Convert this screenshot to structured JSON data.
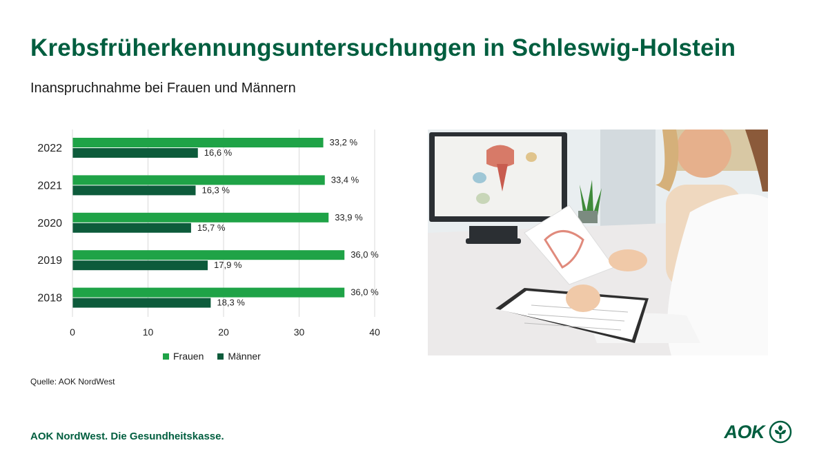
{
  "header": {
    "title": "Krebsfrüherkennungsuntersuchungen in Schleswig-Holstein",
    "subtitle": "Inanspruchnahme bei Frauen und Männern"
  },
  "chart_data": {
    "type": "bar",
    "orientation": "horizontal",
    "categories": [
      "2022",
      "2021",
      "2020",
      "2019",
      "2018"
    ],
    "series": [
      {
        "name": "Frauen",
        "values": [
          33.2,
          33.4,
          33.9,
          36.0,
          36.0
        ],
        "labels": [
          "33,2 %",
          "33,4 %",
          "33,9 %",
          "36,0 %",
          "36,0 %"
        ],
        "color": "#1fa347"
      },
      {
        "name": "Männer",
        "values": [
          16.6,
          16.3,
          15.7,
          17.9,
          18.3
        ],
        "labels": [
          "16,6 %",
          "16,3 %",
          "15,7 %",
          "17,9 %",
          "18,3 %"
        ],
        "color": "#0d5b3b"
      }
    ],
    "xlim": [
      0,
      40
    ],
    "xticks": [
      "0",
      "10",
      "20",
      "30",
      "40"
    ],
    "grid": true,
    "legend_position": "bottom"
  },
  "source": "Quelle: AOK NordWest",
  "footer": "AOK NordWest. Die Gesundheitskasse.",
  "logo": {
    "text": "AOK",
    "color": "#005e3f"
  },
  "photo": {
    "icon": "doctor-consultation-photo"
  }
}
